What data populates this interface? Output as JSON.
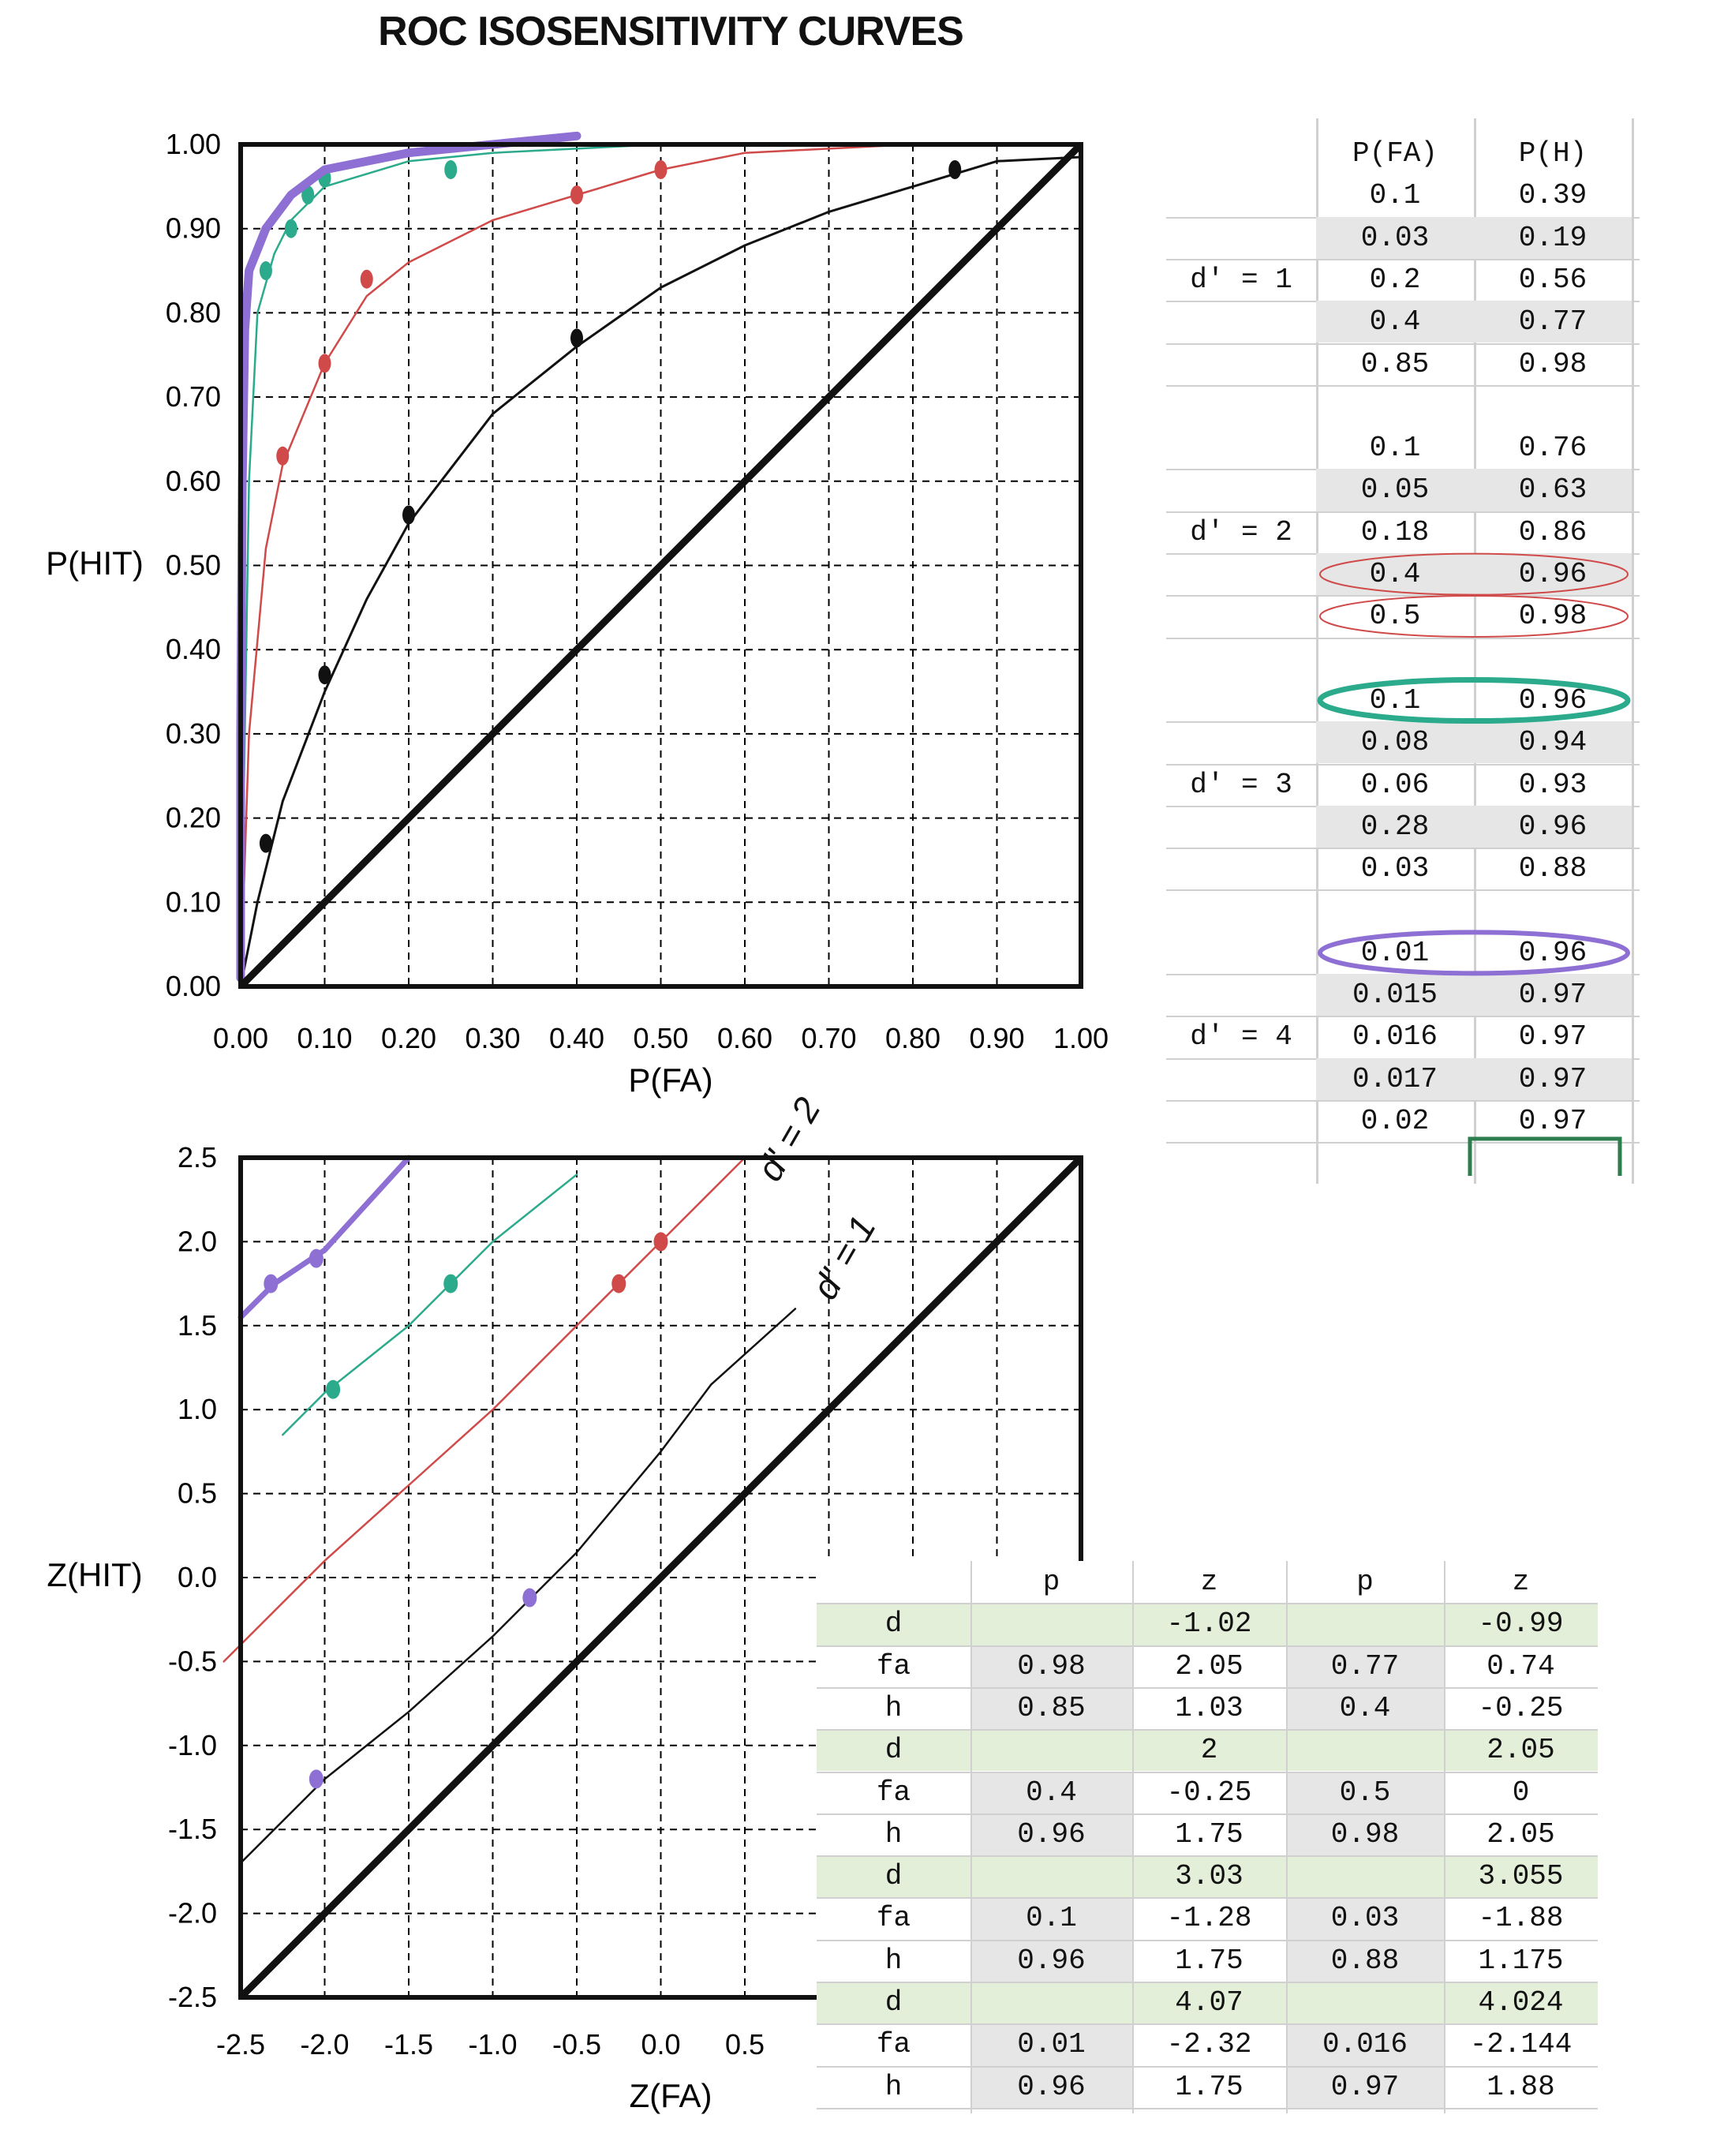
{
  "title": "ROC ISOSENSITIVITY CURVES",
  "colors": {
    "black": "#111111",
    "red": "#d04a4a",
    "green": "#2bab8c",
    "purple": "#8e6fd3",
    "shade": "#e6e6e6",
    "green_shade": "#e3efd9",
    "grid": "#000000",
    "sheet_line": "#d0d0d0"
  },
  "chart_data": [
    {
      "type": "line",
      "title": "ROC ISOSENSITIVITY CURVES",
      "xlabel": "P(FA)",
      "ylabel": "P(HIT)",
      "xlim": [
        0,
        1
      ],
      "ylim": [
        0,
        1
      ],
      "x_ticks": [
        "0.00",
        "0.10",
        "0.20",
        "0.30",
        "0.40",
        "0.50",
        "0.60",
        "0.70",
        "0.80",
        "0.90",
        "1.00"
      ],
      "y_ticks": [
        "0.00",
        "0.10",
        "0.20",
        "0.30",
        "0.40",
        "0.50",
        "0.60",
        "0.70",
        "0.80",
        "0.90",
        "1.00"
      ],
      "grid": true,
      "series": [
        {
          "color": "black",
          "points": [
            [
              0.03,
              0.17
            ],
            [
              0.1,
              0.37
            ],
            [
              0.2,
              0.56
            ],
            [
              0.4,
              0.77
            ],
            [
              0.85,
              0.97
            ]
          ],
          "curve": [
            [
              0,
              0
            ],
            [
              0.02,
              0.1
            ],
            [
              0.05,
              0.22
            ],
            [
              0.1,
              0.35
            ],
            [
              0.15,
              0.46
            ],
            [
              0.2,
              0.55
            ],
            [
              0.3,
              0.68
            ],
            [
              0.4,
              0.76
            ],
            [
              0.5,
              0.83
            ],
            [
              0.6,
              0.88
            ],
            [
              0.7,
              0.92
            ],
            [
              0.8,
              0.95
            ],
            [
              0.9,
              0.98
            ],
            [
              1,
              0.985
            ]
          ]
        },
        {
          "color": "red",
          "points": [
            [
              0.05,
              0.63
            ],
            [
              0.1,
              0.74
            ],
            [
              0.15,
              0.84
            ],
            [
              0.4,
              0.94
            ],
            [
              0.5,
              0.97
            ]
          ],
          "curve": [
            [
              0,
              0
            ],
            [
              0.01,
              0.3
            ],
            [
              0.03,
              0.52
            ],
            [
              0.05,
              0.62
            ],
            [
              0.1,
              0.74
            ],
            [
              0.15,
              0.82
            ],
            [
              0.2,
              0.86
            ],
            [
              0.3,
              0.91
            ],
            [
              0.4,
              0.94
            ],
            [
              0.5,
              0.97
            ],
            [
              0.6,
              0.99
            ],
            [
              0.8,
              1.0
            ],
            [
              1,
              1.0
            ]
          ]
        },
        {
          "color": "green",
          "points": [
            [
              0.03,
              0.85
            ],
            [
              0.06,
              0.9
            ],
            [
              0.08,
              0.94
            ],
            [
              0.1,
              0.96
            ],
            [
              0.25,
              0.97
            ]
          ],
          "curve": [
            [
              0,
              0
            ],
            [
              0.005,
              0.3
            ],
            [
              0.01,
              0.6
            ],
            [
              0.02,
              0.8
            ],
            [
              0.04,
              0.87
            ],
            [
              0.06,
              0.91
            ],
            [
              0.1,
              0.95
            ],
            [
              0.2,
              0.98
            ],
            [
              0.3,
              0.99
            ],
            [
              0.5,
              1.0
            ]
          ]
        },
        {
          "color": "purple",
          "points": [],
          "curve": [
            [
              0.0,
              0.01
            ],
            [
              0.0,
              0.3
            ],
            [
              0.002,
              0.6
            ],
            [
              0.005,
              0.78
            ],
            [
              0.01,
              0.85
            ],
            [
              0.03,
              0.9
            ],
            [
              0.06,
              0.94
            ],
            [
              0.1,
              0.97
            ],
            [
              0.2,
              0.99
            ],
            [
              0.3,
              1.0
            ],
            [
              0.4,
              1.01
            ]
          ]
        }
      ],
      "chance_line": [
        [
          0,
          0
        ],
        [
          1,
          1
        ]
      ]
    },
    {
      "type": "line",
      "xlabel": "Z(FA)",
      "ylabel": "Z(HIT)",
      "xlim": [
        -2.5,
        2.5
      ],
      "ylim": [
        -2.5,
        2.5
      ],
      "x_ticks": [
        "-2.5",
        "-2.0",
        "-1.5",
        "-1.0",
        "-0.5",
        "0.0",
        "0.5"
      ],
      "y_ticks": [
        "2.5",
        "2.0",
        "1.5",
        "1.0",
        "0.5",
        "0.0",
        "-0.5",
        "-1.0",
        "-1.5",
        "-2.0",
        "-2.5"
      ],
      "grid": true,
      "annotations": [
        "d' = 2",
        "d' = 1"
      ],
      "series": [
        {
          "color": "black",
          "line": [
            [
              -2.5,
              -1.7
            ],
            [
              -2.0,
              -1.2
            ],
            [
              -1.5,
              -0.8
            ],
            [
              -1.0,
              -0.35
            ],
            [
              -0.5,
              0.15
            ],
            [
              0.0,
              0.75
            ],
            [
              0.3,
              1.15
            ],
            [
              0.8,
              1.6
            ]
          ]
        },
        {
          "color": "red",
          "line": [
            [
              -2.6,
              -0.5
            ],
            [
              -2.0,
              0.1
            ],
            [
              -1.5,
              0.55
            ],
            [
              -1.0,
              1.0
            ],
            [
              -0.5,
              1.5
            ],
            [
              0.0,
              2.0
            ],
            [
              0.5,
              2.5
            ]
          ]
        },
        {
          "color": "green",
          "line": [
            [
              -2.25,
              0.85
            ],
            [
              -2.0,
              1.1
            ],
            [
              -1.5,
              1.5
            ],
            [
              -1.0,
              2.0
            ],
            [
              -0.5,
              2.4
            ]
          ]
        },
        {
          "color": "purple",
          "line": [
            [
              -2.5,
              1.55
            ],
            [
              -2.3,
              1.75
            ],
            [
              -2.0,
              1.95
            ],
            [
              -1.5,
              2.5
            ]
          ]
        },
        {
          "color": "purple",
          "points": [
            [
              -2.32,
              1.75
            ],
            [
              -2.05,
              1.9
            ],
            [
              -0.78,
              -0.12
            ],
            [
              -2.05,
              -1.2
            ]
          ]
        },
        {
          "color": "green",
          "points": [
            [
              -1.95,
              1.12
            ],
            [
              -1.25,
              1.75
            ]
          ]
        },
        {
          "color": "red",
          "points": [
            [
              -0.25,
              1.75
            ],
            [
              0.0,
              2.0
            ]
          ]
        }
      ],
      "chance_line": [
        [
          -2.5,
          -2.5
        ],
        [
          2.5,
          2.5
        ]
      ]
    }
  ],
  "sheet1": {
    "headers": [
      "P(FA)",
      "P(H)"
    ],
    "groups": [
      {
        "label": "d' = 1",
        "rows": [
          [
            "0.1",
            "0.39"
          ],
          [
            "0.03",
            "0.19"
          ],
          [
            "0.2",
            "0.56"
          ],
          [
            "0.4",
            "0.77"
          ],
          [
            "0.85",
            "0.98"
          ]
        ]
      },
      {
        "label": "d' = 2",
        "rows": [
          [
            "0.1",
            "0.76"
          ],
          [
            "0.05",
            "0.63"
          ],
          [
            "0.18",
            "0.86"
          ],
          [
            "0.4",
            "0.96"
          ],
          [
            "0.5",
            "0.98"
          ]
        ]
      },
      {
        "label": "d' = 3",
        "rows": [
          [
            "0.1",
            "0.96"
          ],
          [
            "0.08",
            "0.94"
          ],
          [
            "0.06",
            "0.93"
          ],
          [
            "0.28",
            "0.96"
          ],
          [
            "0.03",
            "0.88"
          ]
        ]
      },
      {
        "label": "d' = 4",
        "rows": [
          [
            "0.01",
            "0.96"
          ],
          [
            "0.015",
            "0.97"
          ],
          [
            "0.016",
            "0.97"
          ],
          [
            "0.017",
            "0.97"
          ],
          [
            "0.02",
            "0.97"
          ]
        ]
      }
    ]
  },
  "sheet2": {
    "headers": [
      "",
      "p",
      "z",
      "p",
      "z"
    ],
    "rows": [
      [
        "d",
        "",
        "-1.02",
        "",
        "-0.99"
      ],
      [
        "fa",
        "0.98",
        "2.05",
        "0.77",
        "0.74"
      ],
      [
        "h",
        "0.85",
        "1.03",
        "0.4",
        "-0.25"
      ],
      [
        "d",
        "",
        "2",
        "",
        "2.05"
      ],
      [
        "fa",
        "0.4",
        "-0.25",
        "0.5",
        "0"
      ],
      [
        "h",
        "0.96",
        "1.75",
        "0.98",
        "2.05"
      ],
      [
        "d",
        "",
        "3.03",
        "",
        "3.055"
      ],
      [
        "fa",
        "0.1",
        "-1.28",
        "0.03",
        "-1.88"
      ],
      [
        "h",
        "0.96",
        "1.75",
        "0.88",
        "1.175"
      ],
      [
        "d",
        "",
        "4.07",
        "",
        "4.024"
      ],
      [
        "fa",
        "0.01",
        "-2.32",
        "0.016",
        "-2.144"
      ],
      [
        "h",
        "0.96",
        "1.75",
        "0.97",
        "1.88"
      ]
    ]
  }
}
